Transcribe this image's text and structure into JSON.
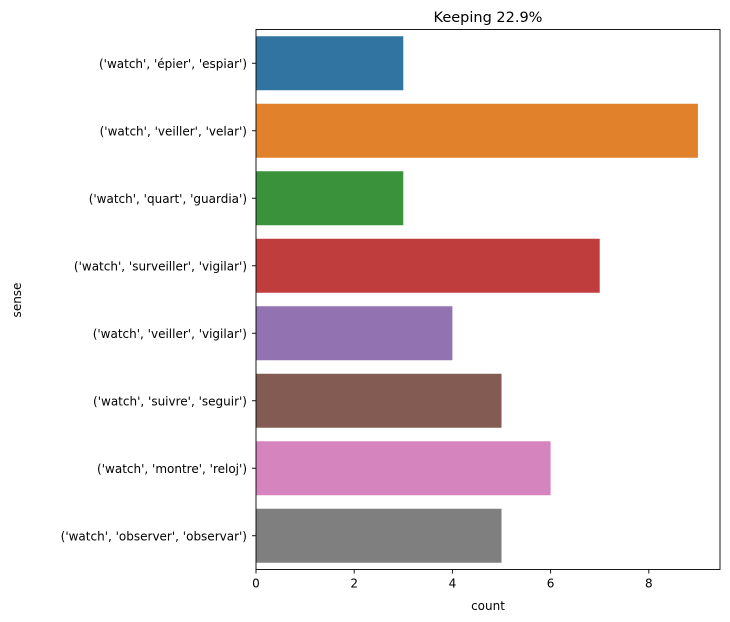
{
  "chart_data": {
    "type": "bar",
    "orientation": "horizontal",
    "title": "Keeping 22.9%",
    "xlabel": "count",
    "ylabel": "sense",
    "xlim": [
      0,
      9.45
    ],
    "xticks": [
      0,
      2,
      4,
      6,
      8
    ],
    "grid": false,
    "legend": "none",
    "categories": [
      "('watch', 'épier', 'espiar')",
      "('watch', 'veiller', 'velar')",
      "('watch', 'quart', 'guardia')",
      "('watch', 'surveiller', 'vigilar')",
      "('watch', 'veiller', 'vigilar')",
      "('watch', 'suivre', 'seguir')",
      "('watch', 'montre', 'reloj')",
      "('watch', 'observer', 'observar')"
    ],
    "values": [
      3,
      9,
      3,
      7,
      4,
      5,
      6,
      5
    ],
    "colors": [
      "#3274a1",
      "#e1812c",
      "#3a923a",
      "#c03d3e",
      "#9372b2",
      "#845b53",
      "#d684bd",
      "#7f7f7f"
    ]
  }
}
